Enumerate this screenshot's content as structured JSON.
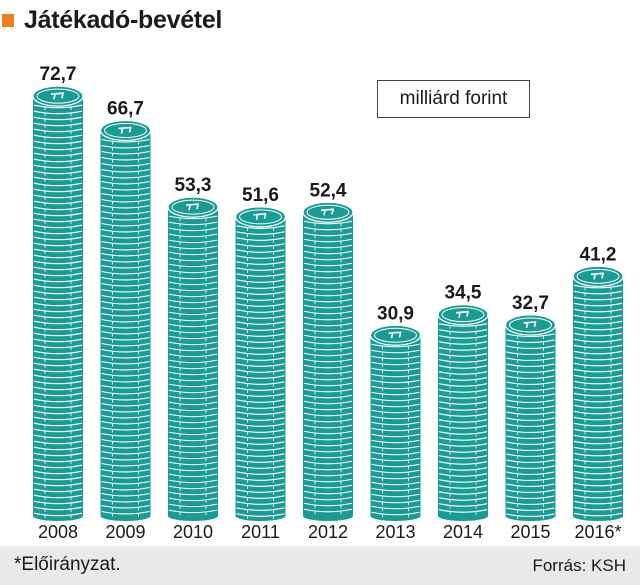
{
  "title": "Játékadó-bevétel",
  "unit_label": "milliárd forint",
  "footnote": "*Előirányzat.",
  "source": "Forrás: KSH",
  "colors": {
    "accent": "#f07c1e",
    "coin_fill": "#1a9c95",
    "coin_line": "#ffffff"
  },
  "chart_data": {
    "type": "bar",
    "categories": [
      "2008",
      "2009",
      "2010",
      "2011",
      "2012",
      "2013",
      "2014",
      "2015",
      "2016*"
    ],
    "values": [
      72.7,
      66.7,
      53.3,
      51.6,
      52.4,
      30.9,
      34.5,
      32.7,
      41.2
    ],
    "value_labels": [
      "72,7",
      "66,7",
      "53,3",
      "51,6",
      "52,4",
      "30,9",
      "34,5",
      "32,7",
      "41,2"
    ],
    "title": "Játékadó-bevétel",
    "ylabel": "",
    "xlabel": "",
    "grid": false,
    "legend": "none"
  }
}
